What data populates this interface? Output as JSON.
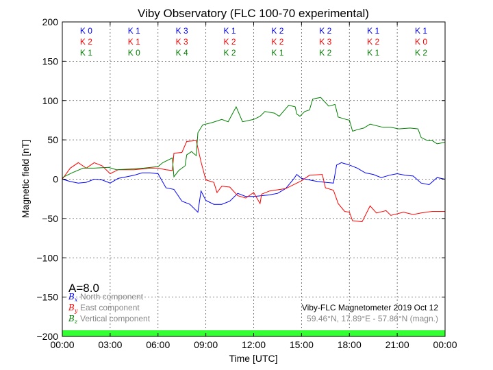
{
  "chart_data": {
    "type": "line",
    "title": "Viby Observatory (FLC 100-70 experimental)",
    "xlabel": "Time [UTC]",
    "ylabel": "Magnetic field [nT]",
    "xlim": [
      "00:00",
      "24:00"
    ],
    "ylim": [
      -200,
      200
    ],
    "grid": true,
    "x_ticks": [
      "00:00",
      "03:00",
      "06:00",
      "09:00",
      "12:00",
      "15:00",
      "18:00",
      "21:00",
      "00:00"
    ],
    "y_ticks": [
      200,
      150,
      100,
      50,
      0,
      -50,
      -100,
      -150,
      -200
    ],
    "y_tick_labels": [
      "200",
      "150",
      "100",
      "50",
      "0",
      "−50",
      "−100",
      "−150",
      "−200"
    ],
    "series": [
      {
        "name": "North component",
        "symbol": "B",
        "subscript": "x",
        "color": "#0000ff",
        "points": [
          [
            "00:00",
            0
          ],
          [
            "00:30",
            -3
          ],
          [
            "01:00",
            -5
          ],
          [
            "01:30",
            -4
          ],
          [
            "02:00",
            0
          ],
          [
            "02:30",
            -1
          ],
          [
            "03:00",
            -5
          ],
          [
            "03:30",
            1
          ],
          [
            "04:00",
            3
          ],
          [
            "04:30",
            5
          ],
          [
            "05:00",
            8
          ],
          [
            "05:30",
            8
          ],
          [
            "06:00",
            7
          ],
          [
            "06:30",
            -11
          ],
          [
            "07:00",
            -13
          ],
          [
            "07:30",
            -28
          ],
          [
            "08:00",
            -32
          ],
          [
            "08:30",
            -42
          ],
          [
            "08:42",
            -15
          ],
          [
            "09:00",
            -27
          ],
          [
            "09:30",
            -32
          ],
          [
            "10:00",
            -32
          ],
          [
            "10:30",
            -28
          ],
          [
            "11:00",
            -18
          ],
          [
            "11:30",
            -22
          ],
          [
            "12:00",
            -22
          ],
          [
            "12:30",
            -21
          ],
          [
            "13:00",
            -20
          ],
          [
            "13:30",
            -18
          ],
          [
            "14:00",
            -12
          ],
          [
            "14:30",
            0
          ],
          [
            "14:42",
            6
          ],
          [
            "15:00",
            1
          ],
          [
            "15:30",
            -1
          ],
          [
            "16:00",
            -3
          ],
          [
            "16:30",
            -4
          ],
          [
            "17:00",
            -5
          ],
          [
            "17:12",
            18
          ],
          [
            "17:30",
            21
          ],
          [
            "18:00",
            18
          ],
          [
            "18:30",
            14
          ],
          [
            "19:00",
            8
          ],
          [
            "19:30",
            6
          ],
          [
            "20:00",
            2
          ],
          [
            "20:30",
            5
          ],
          [
            "21:00",
            7
          ],
          [
            "21:30",
            5
          ],
          [
            "22:00",
            4
          ],
          [
            "22:30",
            -5
          ],
          [
            "23:00",
            -7
          ],
          [
            "23:30",
            2
          ],
          [
            "24:00",
            0
          ]
        ]
      },
      {
        "name": "East component",
        "symbol": "B",
        "subscript": "y",
        "color": "#ff0000",
        "points": [
          [
            "00:00",
            0
          ],
          [
            "00:30",
            14
          ],
          [
            "01:00",
            21
          ],
          [
            "01:30",
            14
          ],
          [
            "02:00",
            21
          ],
          [
            "02:30",
            17
          ],
          [
            "03:00",
            7
          ],
          [
            "03:30",
            12
          ],
          [
            "04:00",
            12
          ],
          [
            "04:30",
            12
          ],
          [
            "05:00",
            13
          ],
          [
            "05:30",
            14
          ],
          [
            "06:00",
            14
          ],
          [
            "06:30",
            12
          ],
          [
            "06:54",
            11
          ],
          [
            "07:00",
            33
          ],
          [
            "07:30",
            34
          ],
          [
            "07:48",
            48
          ],
          [
            "08:24",
            49
          ],
          [
            "08:42",
            22
          ],
          [
            "09:00",
            -1
          ],
          [
            "09:30",
            -4
          ],
          [
            "09:42",
            -17
          ],
          [
            "10:00",
            -9
          ],
          [
            "10:30",
            -10
          ],
          [
            "11:00",
            -21
          ],
          [
            "11:30",
            -24
          ],
          [
            "12:00",
            -17
          ],
          [
            "12:24",
            -31
          ],
          [
            "12:30",
            -19
          ],
          [
            "13:00",
            -15
          ],
          [
            "14:00",
            -12
          ],
          [
            "15:00",
            -2
          ],
          [
            "15:30",
            5
          ],
          [
            "16:18",
            6
          ],
          [
            "16:30",
            -11
          ],
          [
            "17:00",
            -14
          ],
          [
            "17:18",
            -31
          ],
          [
            "17:42",
            -41
          ],
          [
            "18:00",
            -42
          ],
          [
            "18:12",
            -53
          ],
          [
            "18:48",
            -54
          ],
          [
            "19:18",
            -34
          ],
          [
            "19:42",
            -43
          ],
          [
            "20:18",
            -40
          ],
          [
            "20:36",
            -46
          ],
          [
            "21:24",
            -42
          ],
          [
            "22:00",
            -45
          ],
          [
            "22:30",
            -43
          ],
          [
            "23:12",
            -41
          ],
          [
            "24:00",
            -41
          ]
        ]
      },
      {
        "name": "Vertical component",
        "symbol": "B",
        "subscript": "z",
        "color": "#008000",
        "points": [
          [
            "00:00",
            2
          ],
          [
            "00:36",
            8
          ],
          [
            "01:18",
            14
          ],
          [
            "02:00",
            14
          ],
          [
            "02:54",
            15
          ],
          [
            "03:24",
            12
          ],
          [
            "04:18",
            13
          ],
          [
            "05:06",
            14
          ],
          [
            "06:00",
            16
          ],
          [
            "06:18",
            21
          ],
          [
            "06:42",
            25
          ],
          [
            "06:54",
            27
          ],
          [
            "07:00",
            3
          ],
          [
            "07:18",
            11
          ],
          [
            "07:42",
            17
          ],
          [
            "07:48",
            31
          ],
          [
            "08:06",
            35
          ],
          [
            "08:24",
            30
          ],
          [
            "08:30",
            59
          ],
          [
            "08:48",
            69
          ],
          [
            "09:24",
            72
          ],
          [
            "10:00",
            76
          ],
          [
            "10:24",
            73
          ],
          [
            "10:54",
            92
          ],
          [
            "11:18",
            73
          ],
          [
            "12:00",
            76
          ],
          [
            "12:24",
            80
          ],
          [
            "12:42",
            86
          ],
          [
            "13:18",
            84
          ],
          [
            "13:36",
            80
          ],
          [
            "14:12",
            94
          ],
          [
            "14:36",
            92
          ],
          [
            "14:42",
            83
          ],
          [
            "14:54",
            80
          ],
          [
            "15:12",
            86
          ],
          [
            "15:30",
            88
          ],
          [
            "15:42",
            102
          ],
          [
            "16:12",
            104
          ],
          [
            "16:42",
            93
          ],
          [
            "17:06",
            95
          ],
          [
            "17:18",
            79
          ],
          [
            "17:48",
            76
          ],
          [
            "18:00",
            75
          ],
          [
            "18:12",
            61
          ],
          [
            "18:30",
            63
          ],
          [
            "18:54",
            65
          ],
          [
            "19:18",
            70
          ],
          [
            "20:06",
            66
          ],
          [
            "20:36",
            66
          ],
          [
            "21:06",
            64
          ],
          [
            "21:48",
            65
          ],
          [
            "22:18",
            64
          ],
          [
            "22:30",
            53
          ],
          [
            "22:54",
            49
          ],
          [
            "23:12",
            49
          ],
          [
            "23:30",
            45
          ],
          [
            "24:00",
            47
          ]
        ]
      }
    ],
    "k_indices": {
      "x": [
        "K 0",
        "K 1",
        "K 3",
        "K 1",
        "K 2",
        "K 2",
        "K 1",
        "K 1"
      ],
      "y": [
        "K 2",
        "K 1",
        "K 3",
        "K 2",
        "K 2",
        "K 3",
        "K 2",
        "K 0"
      ],
      "z": [
        "K 1",
        "K 0",
        "K 4",
        "K 2",
        "K 1",
        "K 2",
        "K 1",
        "K 2"
      ]
    },
    "activity_bar_color": "#33ff33",
    "a_index": "A=8.0",
    "annotation": "Viby-FLC Magnetometer 2019 Oct 12",
    "location": "59.46°N, 17.89°E - 57.86°N (magn.)"
  }
}
